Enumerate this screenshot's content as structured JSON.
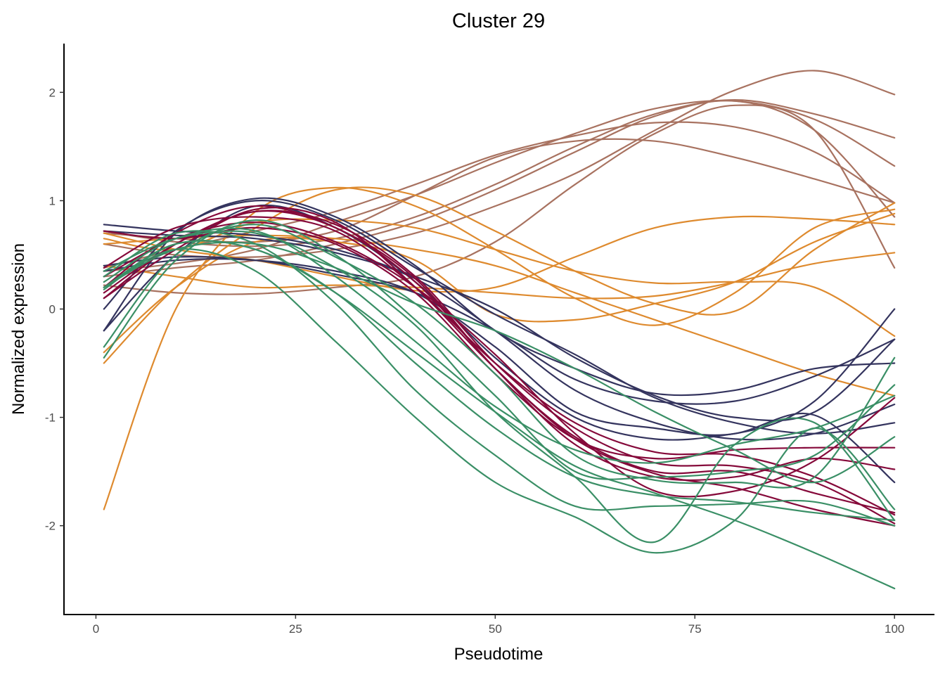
{
  "chart_data": {
    "type": "line",
    "title": "Cluster 29",
    "xlabel": "Pseudotime",
    "ylabel": "Normalized expression",
    "xlim": [
      -4,
      105
    ],
    "ylim": [
      -2.82,
      2.45
    ],
    "xticks": [
      0,
      25,
      50,
      75,
      100
    ],
    "yticks": [
      -2,
      -1,
      0,
      1,
      2
    ],
    "xtick_labels": [
      "0",
      "25",
      "50",
      "75",
      "100"
    ],
    "ytick_labels": [
      "-2",
      "-1",
      "0",
      "1",
      "2"
    ],
    "grid": false,
    "legend": "none",
    "groups": [
      {
        "name": "brown",
        "color": "#A87260"
      },
      {
        "name": "orange",
        "color": "#DE8A2E"
      },
      {
        "name": "navy",
        "color": "#34345E"
      },
      {
        "name": "crimson",
        "color": "#85093A"
      },
      {
        "name": "green",
        "color": "#3A8F66"
      }
    ],
    "x": [
      1,
      10,
      20,
      30,
      40,
      50,
      60,
      70,
      80,
      90,
      100
    ],
    "series": [
      {
        "group": "brown",
        "values": [
          0.38,
          0.55,
          0.72,
          0.9,
          1.15,
          1.42,
          1.6,
          1.72,
          1.68,
          1.45,
          0.98
        ]
      },
      {
        "group": "brown",
        "values": [
          0.7,
          0.65,
          0.62,
          0.72,
          1.05,
          1.4,
          1.55,
          1.55,
          1.4,
          1.2,
          0.98
        ]
      },
      {
        "group": "brown",
        "values": [
          0.35,
          0.42,
          0.55,
          0.8,
          1.05,
          1.35,
          1.62,
          1.85,
          1.92,
          1.75,
          1.32
        ]
      },
      {
        "group": "brown",
        "values": [
          0.72,
          0.62,
          0.58,
          0.65,
          0.85,
          1.15,
          1.5,
          1.8,
          1.93,
          1.8,
          1.58
        ]
      },
      {
        "group": "brown",
        "values": [
          0.6,
          0.5,
          0.48,
          0.55,
          0.7,
          0.95,
          1.25,
          1.65,
          2.02,
          2.2,
          1.98
        ]
      },
      {
        "group": "brown",
        "values": [
          0.22,
          0.15,
          0.14,
          0.2,
          0.3,
          0.62,
          1.15,
          1.62,
          1.88,
          1.65,
          0.38
        ]
      },
      {
        "group": "brown",
        "values": [
          0.3,
          0.38,
          0.45,
          0.6,
          0.8,
          1.1,
          1.45,
          1.78,
          1.92,
          1.65,
          0.85
        ]
      },
      {
        "group": "orange",
        "values": [
          -1.85,
          0.0,
          0.9,
          1.12,
          0.95,
          0.55,
          0.1,
          -0.15,
          0.15,
          0.75,
          0.92
        ]
      },
      {
        "group": "orange",
        "values": [
          -0.5,
          0.2,
          0.75,
          1.1,
          1.05,
          0.72,
          0.35,
          0.05,
          -0.02,
          0.55,
          0.98
        ]
      },
      {
        "group": "orange",
        "values": [
          0.65,
          0.55,
          0.8,
          0.82,
          0.75,
          0.55,
          0.35,
          0.24,
          0.25,
          0.2,
          -0.25
        ]
      },
      {
        "group": "orange",
        "values": [
          0.6,
          0.65,
          0.68,
          0.65,
          0.55,
          0.4,
          0.15,
          -0.1,
          -0.35,
          -0.6,
          -0.8
        ]
      },
      {
        "group": "orange",
        "values": [
          0.4,
          0.3,
          0.2,
          0.22,
          0.2,
          0.15,
          0.1,
          0.12,
          0.25,
          0.42,
          0.52
        ]
      },
      {
        "group": "orange",
        "values": [
          0.7,
          0.55,
          0.45,
          0.3,
          0.17,
          0.2,
          0.48,
          0.75,
          0.85,
          0.83,
          0.78
        ]
      },
      {
        "group": "orange",
        "values": [
          -0.4,
          0.2,
          0.62,
          0.62,
          0.45,
          -0.05,
          -0.1,
          0.05,
          0.25,
          0.62,
          0.88
        ]
      },
      {
        "group": "navy",
        "values": [
          -0.2,
          0.7,
          1.02,
          0.85,
          0.4,
          -0.2,
          -0.55,
          -0.78,
          -0.75,
          -0.55,
          -0.5
        ]
      },
      {
        "group": "navy",
        "values": [
          0.0,
          0.72,
          1.0,
          0.82,
          0.38,
          -0.05,
          -0.42,
          -0.82,
          -1.05,
          -1.15,
          -1.05
        ]
      },
      {
        "group": "navy",
        "values": [
          0.78,
          0.72,
          0.68,
          0.55,
          0.3,
          0.0,
          -0.45,
          -0.8,
          -1.0,
          -0.95,
          -0.28
        ]
      },
      {
        "group": "navy",
        "values": [
          0.4,
          0.48,
          0.45,
          0.32,
          0.15,
          -0.2,
          -0.65,
          -0.85,
          -0.85,
          -0.62,
          -0.28
        ]
      },
      {
        "group": "navy",
        "values": [
          0.72,
          0.68,
          0.65,
          0.52,
          0.28,
          -0.2,
          -0.75,
          -1.05,
          -1.2,
          -1.15,
          -0.88
        ]
      },
      {
        "group": "navy",
        "values": [
          -0.2,
          0.5,
          0.95,
          0.75,
          0.25,
          -0.45,
          -1.0,
          -1.2,
          -1.15,
          -0.98,
          -1.6
        ]
      },
      {
        "group": "navy",
        "values": [
          0.35,
          0.45,
          0.45,
          0.35,
          0.15,
          -0.35,
          -0.95,
          -1.1,
          -1.15,
          -0.85,
          0.0
        ]
      },
      {
        "group": "crimson",
        "values": [
          0.1,
          0.6,
          0.9,
          0.78,
          0.3,
          -0.5,
          -1.1,
          -1.42,
          -1.45,
          -1.6,
          -1.98
        ]
      },
      {
        "group": "crimson",
        "values": [
          0.2,
          0.7,
          0.95,
          0.75,
          0.28,
          -0.55,
          -1.18,
          -1.5,
          -1.5,
          -1.7,
          -1.88
        ]
      },
      {
        "group": "crimson",
        "values": [
          0.38,
          0.75,
          0.85,
          0.72,
          0.2,
          -0.5,
          -1.05,
          -1.32,
          -1.35,
          -1.55,
          -1.9
        ]
      },
      {
        "group": "crimson",
        "values": [
          0.72,
          0.65,
          0.75,
          0.6,
          0.15,
          -0.6,
          -1.2,
          -1.38,
          -1.3,
          -1.28,
          -1.28
        ]
      },
      {
        "group": "crimson",
        "values": [
          0.15,
          0.6,
          0.9,
          0.75,
          0.25,
          -0.55,
          -1.25,
          -1.55,
          -1.55,
          -1.38,
          -1.48
        ]
      },
      {
        "group": "crimson",
        "values": [
          0.3,
          0.65,
          0.8,
          0.62,
          0.2,
          -0.42,
          -1.15,
          -1.68,
          -1.68,
          -1.4,
          -0.82
        ]
      },
      {
        "group": "crimson",
        "values": [
          0.1,
          0.55,
          0.92,
          0.8,
          0.2,
          -0.55,
          -1.2,
          -1.52,
          -1.65,
          -1.85,
          -2.0
        ]
      },
      {
        "group": "green",
        "values": [
          -0.35,
          0.5,
          0.78,
          0.48,
          0.05,
          -0.6,
          -1.35,
          -1.58,
          -1.6,
          -1.55,
          -0.45
        ]
      },
      {
        "group": "green",
        "values": [
          -0.45,
          0.45,
          0.82,
          0.5,
          -0.1,
          -0.8,
          -1.5,
          -1.55,
          -1.5,
          -1.35,
          -0.7
        ]
      },
      {
        "group": "green",
        "values": [
          0.2,
          0.55,
          0.6,
          0.38,
          0.05,
          -0.2,
          -0.55,
          -0.95,
          -1.3,
          -1.6,
          -1.18
        ]
      },
      {
        "group": "green",
        "values": [
          0.25,
          0.65,
          0.72,
          0.3,
          -0.3,
          -0.9,
          -1.3,
          -1.42,
          -1.25,
          -1.1,
          -0.8
        ]
      },
      {
        "group": "green",
        "values": [
          0.2,
          0.6,
          0.55,
          0.15,
          -0.5,
          -1.1,
          -1.55,
          -1.72,
          -1.78,
          -1.88,
          -1.95
        ]
      },
      {
        "group": "green",
        "values": [
          0.3,
          0.7,
          0.6,
          0.05,
          -0.75,
          -1.35,
          -1.82,
          -1.82,
          -1.8,
          -1.78,
          -2.0
        ]
      },
      {
        "group": "green",
        "values": [
          0.2,
          0.55,
          0.35,
          -0.3,
          -1.0,
          -1.6,
          -1.92,
          -2.25,
          -1.95,
          -1.1,
          -1.85
        ]
      },
      {
        "group": "green",
        "values": [
          0.35,
          0.65,
          0.7,
          0.38,
          -0.15,
          -0.95,
          -1.55,
          -2.15,
          -1.25,
          -1.05,
          -1.95
        ]
      },
      {
        "group": "green",
        "values": [
          0.18,
          0.6,
          0.55,
          0.15,
          -0.4,
          -0.95,
          -1.45,
          -1.7,
          -1.95,
          -2.25,
          -2.58
        ]
      }
    ]
  }
}
